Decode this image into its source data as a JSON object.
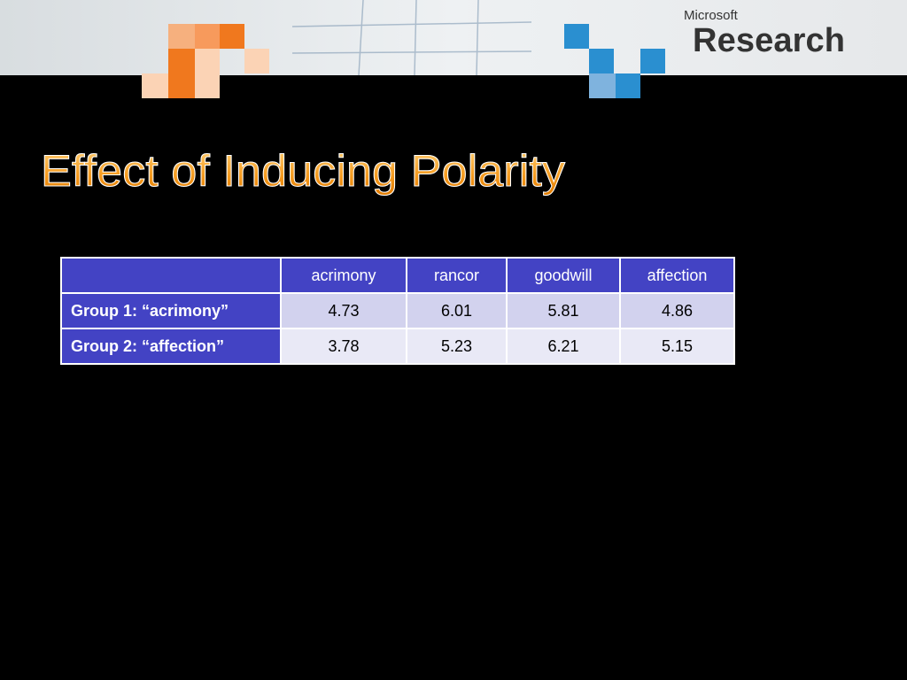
{
  "brand": {
    "company": "Microsoft",
    "product": "Research"
  },
  "title": "Effect of Inducing Polarity",
  "table": {
    "columns": [
      "acrimony",
      "rancor",
      "goodwill",
      "affection"
    ],
    "rows": [
      {
        "label": "Group 1: “acrimony”",
        "values": [
          "4.73",
          "6.01",
          "5.81",
          "4.86"
        ]
      },
      {
        "label": "Group 2: “affection”",
        "values": [
          "3.78",
          "5.23",
          "6.21",
          "5.15"
        ]
      }
    ]
  }
}
